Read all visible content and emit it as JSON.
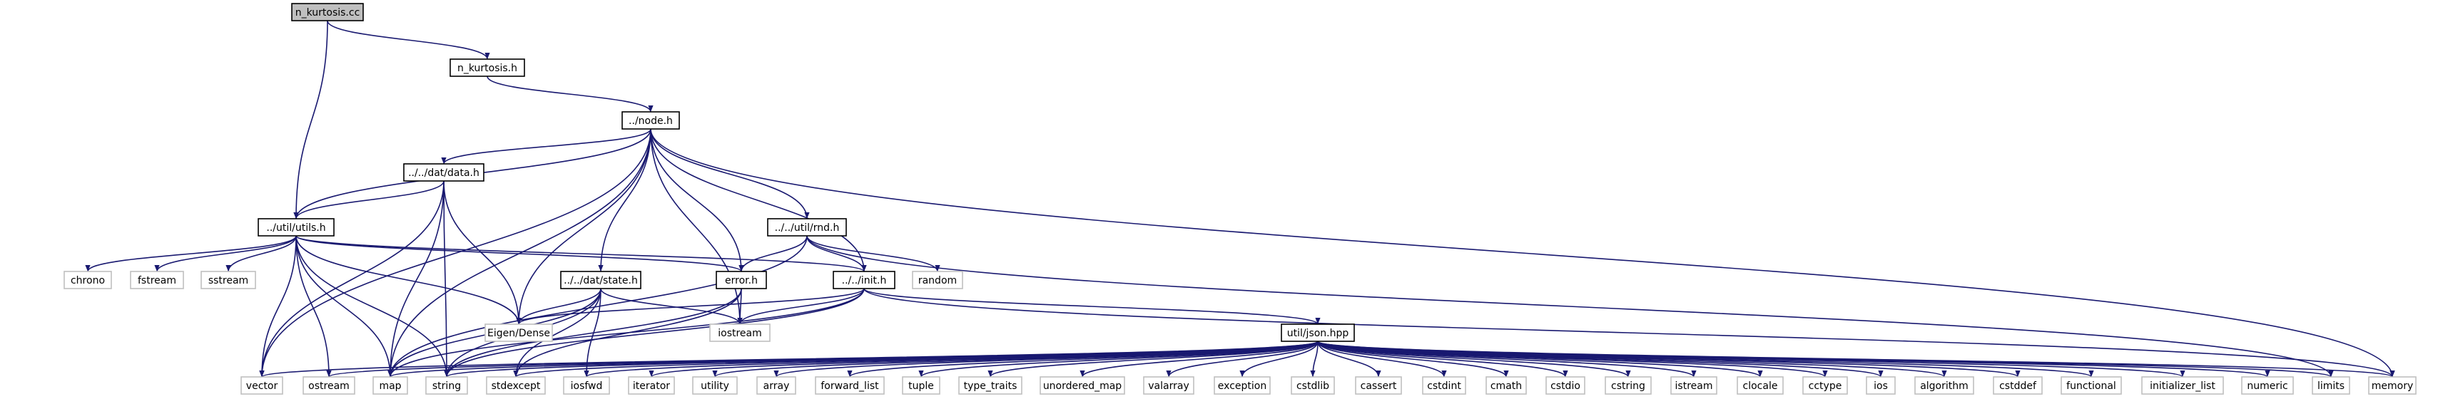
{
  "diagram": {
    "title": "",
    "colors": {
      "edge": "#191970",
      "focus_fill": "#bfbfbf",
      "documented_border": "#000000",
      "external_border": "#bfbfbf",
      "label": "#000000"
    },
    "nodes": [
      {
        "id": "n_kurtosis_cc",
        "label": "n_kurtosis.cc",
        "kind": "focus"
      },
      {
        "id": "n_kurtosis_h",
        "label": "n_kurtosis.h",
        "kind": "documented"
      },
      {
        "id": "node_h",
        "label": "../node.h",
        "kind": "documented"
      },
      {
        "id": "data_h",
        "label": "../../dat/data.h",
        "kind": "documented"
      },
      {
        "id": "utils_h",
        "label": "../util/utils.h",
        "kind": "documented"
      },
      {
        "id": "rnd_h",
        "label": "../../util/rnd.h",
        "kind": "documented"
      },
      {
        "id": "state_h",
        "label": "../../dat/state.h",
        "kind": "documented"
      },
      {
        "id": "error_h",
        "label": "error.h",
        "kind": "documented"
      },
      {
        "id": "init_h",
        "label": "../../init.h",
        "kind": "documented"
      },
      {
        "id": "json_hpp",
        "label": "util/json.hpp",
        "kind": "documented"
      },
      {
        "id": "chrono",
        "label": "chrono",
        "kind": "external"
      },
      {
        "id": "fstream",
        "label": "fstream",
        "kind": "external"
      },
      {
        "id": "sstream",
        "label": "sstream",
        "kind": "external"
      },
      {
        "id": "random",
        "label": "random",
        "kind": "external"
      },
      {
        "id": "eigen",
        "label": "Eigen/Dense",
        "kind": "external"
      },
      {
        "id": "iostream",
        "label": "iostream",
        "kind": "external"
      },
      {
        "id": "vector",
        "label": "vector",
        "kind": "external"
      },
      {
        "id": "ostream",
        "label": "ostream",
        "kind": "external"
      },
      {
        "id": "map",
        "label": "map",
        "kind": "external"
      },
      {
        "id": "string",
        "label": "string",
        "kind": "external"
      },
      {
        "id": "stdexcept",
        "label": "stdexcept",
        "kind": "external"
      },
      {
        "id": "iosfwd",
        "label": "iosfwd",
        "kind": "external"
      },
      {
        "id": "iterator",
        "label": "iterator",
        "kind": "external"
      },
      {
        "id": "utility",
        "label": "utility",
        "kind": "external"
      },
      {
        "id": "array",
        "label": "array",
        "kind": "external"
      },
      {
        "id": "forward_list",
        "label": "forward_list",
        "kind": "external"
      },
      {
        "id": "tuple",
        "label": "tuple",
        "kind": "external"
      },
      {
        "id": "type_traits",
        "label": "type_traits",
        "kind": "external"
      },
      {
        "id": "unordered_map",
        "label": "unordered_map",
        "kind": "external"
      },
      {
        "id": "valarray",
        "label": "valarray",
        "kind": "external"
      },
      {
        "id": "exception",
        "label": "exception",
        "kind": "external"
      },
      {
        "id": "cstdlib",
        "label": "cstdlib",
        "kind": "external"
      },
      {
        "id": "cassert",
        "label": "cassert",
        "kind": "external"
      },
      {
        "id": "cstdint",
        "label": "cstdint",
        "kind": "external"
      },
      {
        "id": "cmath",
        "label": "cmath",
        "kind": "external"
      },
      {
        "id": "cstdio",
        "label": "cstdio",
        "kind": "external"
      },
      {
        "id": "cstring",
        "label": "cstring",
        "kind": "external"
      },
      {
        "id": "istream",
        "label": "istream",
        "kind": "external"
      },
      {
        "id": "clocale",
        "label": "clocale",
        "kind": "external"
      },
      {
        "id": "cctype",
        "label": "cctype",
        "kind": "external"
      },
      {
        "id": "ios",
        "label": "ios",
        "kind": "external"
      },
      {
        "id": "algorithm",
        "label": "algorithm",
        "kind": "external"
      },
      {
        "id": "cstddef",
        "label": "cstddef",
        "kind": "external"
      },
      {
        "id": "functional",
        "label": "functional",
        "kind": "external"
      },
      {
        "id": "initializer_list",
        "label": "initializer_list",
        "kind": "external"
      },
      {
        "id": "numeric",
        "label": "numeric",
        "kind": "external"
      },
      {
        "id": "limits",
        "label": "limits",
        "kind": "external"
      },
      {
        "id": "memory",
        "label": "memory",
        "kind": "external"
      }
    ],
    "edges": [
      [
        "n_kurtosis_cc",
        "n_kurtosis_h"
      ],
      [
        "n_kurtosis_cc",
        "utils_h"
      ],
      [
        "n_kurtosis_h",
        "node_h"
      ],
      [
        "node_h",
        "data_h"
      ],
      [
        "node_h",
        "utils_h"
      ],
      [
        "node_h",
        "rnd_h"
      ],
      [
        "node_h",
        "state_h"
      ],
      [
        "node_h",
        "error_h"
      ],
      [
        "node_h",
        "init_h"
      ],
      [
        "node_h",
        "eigen"
      ],
      [
        "node_h",
        "iostream"
      ],
      [
        "node_h",
        "vector"
      ],
      [
        "node_h",
        "map"
      ],
      [
        "node_h",
        "memory"
      ],
      [
        "data_h",
        "utils_h"
      ],
      [
        "data_h",
        "eigen"
      ],
      [
        "data_h",
        "vector"
      ],
      [
        "data_h",
        "map"
      ],
      [
        "data_h",
        "string"
      ],
      [
        "utils_h",
        "chrono"
      ],
      [
        "utils_h",
        "fstream"
      ],
      [
        "utils_h",
        "sstream"
      ],
      [
        "utils_h",
        "eigen"
      ],
      [
        "utils_h",
        "vector"
      ],
      [
        "utils_h",
        "ostream"
      ],
      [
        "utils_h",
        "map"
      ],
      [
        "utils_h",
        "string"
      ],
      [
        "utils_h",
        "error_h"
      ],
      [
        "utils_h",
        "init_h"
      ],
      [
        "rnd_h",
        "error_h"
      ],
      [
        "rnd_h",
        "init_h"
      ],
      [
        "rnd_h",
        "random"
      ],
      [
        "rnd_h",
        "map"
      ],
      [
        "rnd_h",
        "limits"
      ],
      [
        "state_h",
        "eigen"
      ],
      [
        "state_h",
        "iostream"
      ],
      [
        "state_h",
        "map"
      ],
      [
        "state_h",
        "string"
      ],
      [
        "state_h",
        "stdexcept"
      ],
      [
        "state_h",
        "iosfwd"
      ],
      [
        "error_h",
        "iostream"
      ],
      [
        "error_h",
        "string"
      ],
      [
        "error_h",
        "stdexcept"
      ],
      [
        "init_h",
        "json_hpp"
      ],
      [
        "init_h",
        "eigen"
      ],
      [
        "init_h",
        "iostream"
      ],
      [
        "init_h",
        "string"
      ],
      [
        "init_h",
        "map"
      ],
      [
        "init_h",
        "memory"
      ],
      [
        "json_hpp",
        "vector"
      ],
      [
        "json_hpp",
        "ostream"
      ],
      [
        "json_hpp",
        "map"
      ],
      [
        "json_hpp",
        "string"
      ],
      [
        "json_hpp",
        "stdexcept"
      ],
      [
        "json_hpp",
        "iosfwd"
      ],
      [
        "json_hpp",
        "iterator"
      ],
      [
        "json_hpp",
        "utility"
      ],
      [
        "json_hpp",
        "array"
      ],
      [
        "json_hpp",
        "forward_list"
      ],
      [
        "json_hpp",
        "tuple"
      ],
      [
        "json_hpp",
        "type_traits"
      ],
      [
        "json_hpp",
        "unordered_map"
      ],
      [
        "json_hpp",
        "valarray"
      ],
      [
        "json_hpp",
        "exception"
      ],
      [
        "json_hpp",
        "cstdlib"
      ],
      [
        "json_hpp",
        "cassert"
      ],
      [
        "json_hpp",
        "cstdint"
      ],
      [
        "json_hpp",
        "cmath"
      ],
      [
        "json_hpp",
        "cstdio"
      ],
      [
        "json_hpp",
        "cstring"
      ],
      [
        "json_hpp",
        "istream"
      ],
      [
        "json_hpp",
        "clocale"
      ],
      [
        "json_hpp",
        "cctype"
      ],
      [
        "json_hpp",
        "ios"
      ],
      [
        "json_hpp",
        "algorithm"
      ],
      [
        "json_hpp",
        "cstddef"
      ],
      [
        "json_hpp",
        "functional"
      ],
      [
        "json_hpp",
        "initializer_list"
      ],
      [
        "json_hpp",
        "numeric"
      ],
      [
        "json_hpp",
        "limits"
      ],
      [
        "json_hpp",
        "memory"
      ]
    ]
  }
}
